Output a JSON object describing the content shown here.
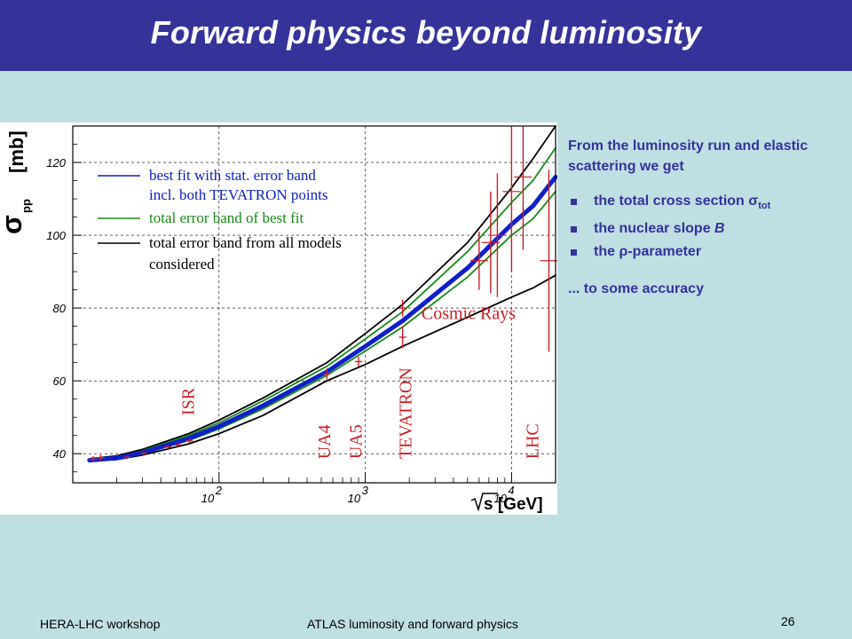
{
  "slide": {
    "title": "Forward physics beyond luminosity",
    "footer_left": "HERA-LHC workshop",
    "footer_center": "ATLAS luminosity and forward physics",
    "page_number": "26"
  },
  "text": {
    "intro": "From the luminosity run and elastic scattering we get",
    "bullet1_prefix": "the total cross section σ",
    "bullet1_sub": "tot",
    "bullet2_prefix": "the nuclear slope ",
    "bullet2_var": "B",
    "bullet3": "the ρ-parameter",
    "closing": "... to some accuracy"
  },
  "chart_data": {
    "type": "line",
    "x_scale": "log",
    "xlim": [
      10,
      20000
    ],
    "ylim": [
      32,
      130
    ],
    "y_ticks": [
      "40",
      "60",
      "80",
      "100",
      "120"
    ],
    "x_ticks": [
      {
        "base": "10",
        "exp": "2",
        "value": 100
      },
      {
        "base": "10",
        "exp": "3",
        "value": 1000
      },
      {
        "base": "10",
        "exp": "4",
        "value": 10000
      }
    ],
    "ylabel_sigma": "σ",
    "ylabel_sub": "pp",
    "ylabel_unit": "[mb]",
    "xlabel": "s [GeV]",
    "grid": true,
    "legend": [
      {
        "label": "best fit with stat. error band",
        "color": "#1020c8"
      },
      {
        "label": "incl. both TEVATRON points",
        "color": null
      },
      {
        "label": "total error band of best fit",
        "color": "#1a8a1a"
      },
      {
        "label": "total error band from all models",
        "color": "#000000"
      },
      {
        "label": "considered",
        "color": null
      }
    ],
    "experiment_labels": [
      {
        "text": "ISR",
        "x": 62,
        "y": 52
      },
      {
        "text": "UA4",
        "x": 530,
        "y": 40
      },
      {
        "text": "UA5",
        "x": 870,
        "y": 40
      },
      {
        "text": "TEVATRON",
        "x": 1900,
        "y": 40
      },
      {
        "text": "LHC",
        "x": 14000,
        "y": 40
      },
      {
        "text": "Cosmic Rays",
        "x": 7000,
        "y": 78
      }
    ],
    "series": [
      {
        "name": "best fit with stat. error band",
        "color": "#1020c8",
        "x": [
          13,
          20,
          30,
          62,
          100,
          200,
          546,
          1000,
          1800,
          5000,
          10000,
          14000,
          20000
        ],
        "y": [
          38.2,
          38.8,
          40.3,
          44.2,
          47.5,
          53.2,
          62.5,
          69.5,
          76.5,
          91,
          103,
          108,
          116
        ]
      },
      {
        "name": "total error band of best fit",
        "color": "#1a8a1a",
        "x": [
          13,
          20,
          30,
          62,
          100,
          200,
          546,
          1000,
          1800,
          5000,
          10000,
          14000,
          20000
        ],
        "y": [
          38.4,
          39.1,
          40.8,
          45.0,
          48.5,
          54.5,
          64,
          71.5,
          79,
          95.5,
          109,
          115,
          124
        ]
      },
      {
        "name": "total error band of best fit (lower)",
        "color": "#1a8a1a",
        "x": [
          13,
          20,
          30,
          62,
          100,
          200,
          546,
          1000,
          1800,
          5000,
          10000,
          14000,
          20000
        ],
        "y": [
          38.0,
          38.6,
          40.0,
          43.6,
          46.8,
          52.3,
          61.5,
          68.2,
          74.8,
          88.5,
          100,
          104.5,
          112
        ]
      },
      {
        "name": "total error band from all models",
        "color": "#000000",
        "x": [
          13,
          20,
          30,
          62,
          100,
          200,
          546,
          1000,
          1800,
          5000,
          10000,
          14000,
          20000
        ],
        "y": [
          38.6,
          39.4,
          41.2,
          45.5,
          49.2,
          55.3,
          65,
          73,
          81,
          98,
          113,
          121,
          130
        ]
      },
      {
        "name": "total error band from all models (lower)",
        "color": "#000000",
        "x": [
          13,
          20,
          30,
          62,
          100,
          200,
          546,
          1000,
          1800,
          5000,
          10000,
          14000,
          20000
        ],
        "y": [
          37.9,
          38.4,
          39.6,
          42.7,
          45.5,
          50.5,
          60,
          64.5,
          69.5,
          77.5,
          83,
          85.5,
          89
        ]
      }
    ],
    "data_points": [
      {
        "x": 13.8,
        "y": 38.5,
        "err": 0.8
      },
      {
        "x": 15.5,
        "y": 38.9,
        "err": 0.8
      },
      {
        "x": 23.5,
        "y": 39.0,
        "err": 0.5
      },
      {
        "x": 30.6,
        "y": 40.1,
        "err": 0.5
      },
      {
        "x": 44.7,
        "y": 41.8,
        "err": 0.5
      },
      {
        "x": 52.8,
        "y": 42.4,
        "err": 0.5
      },
      {
        "x": 62.7,
        "y": 43.5,
        "err": 0.6
      },
      {
        "x": 546,
        "y": 61.9,
        "err": 1.5
      },
      {
        "x": 900,
        "y": 65.3,
        "err": 1.3
      },
      {
        "x": 1800,
        "y": 80.0,
        "err": 2.3
      },
      {
        "x": 1800,
        "y": 72.0,
        "err": 3.0
      }
    ],
    "cosmic_ray_points": [
      {
        "x": 6000,
        "y": 93,
        "err": 8
      },
      {
        "x": 7200,
        "y": 98,
        "err": 14
      },
      {
        "x": 8000,
        "y": 100,
        "err": 17
      },
      {
        "x": 10000,
        "y": 112,
        "err": 22
      },
      {
        "x": 12000,
        "y": 116,
        "err": 20
      },
      {
        "x": 18000,
        "y": 93,
        "err": 25
      }
    ]
  }
}
